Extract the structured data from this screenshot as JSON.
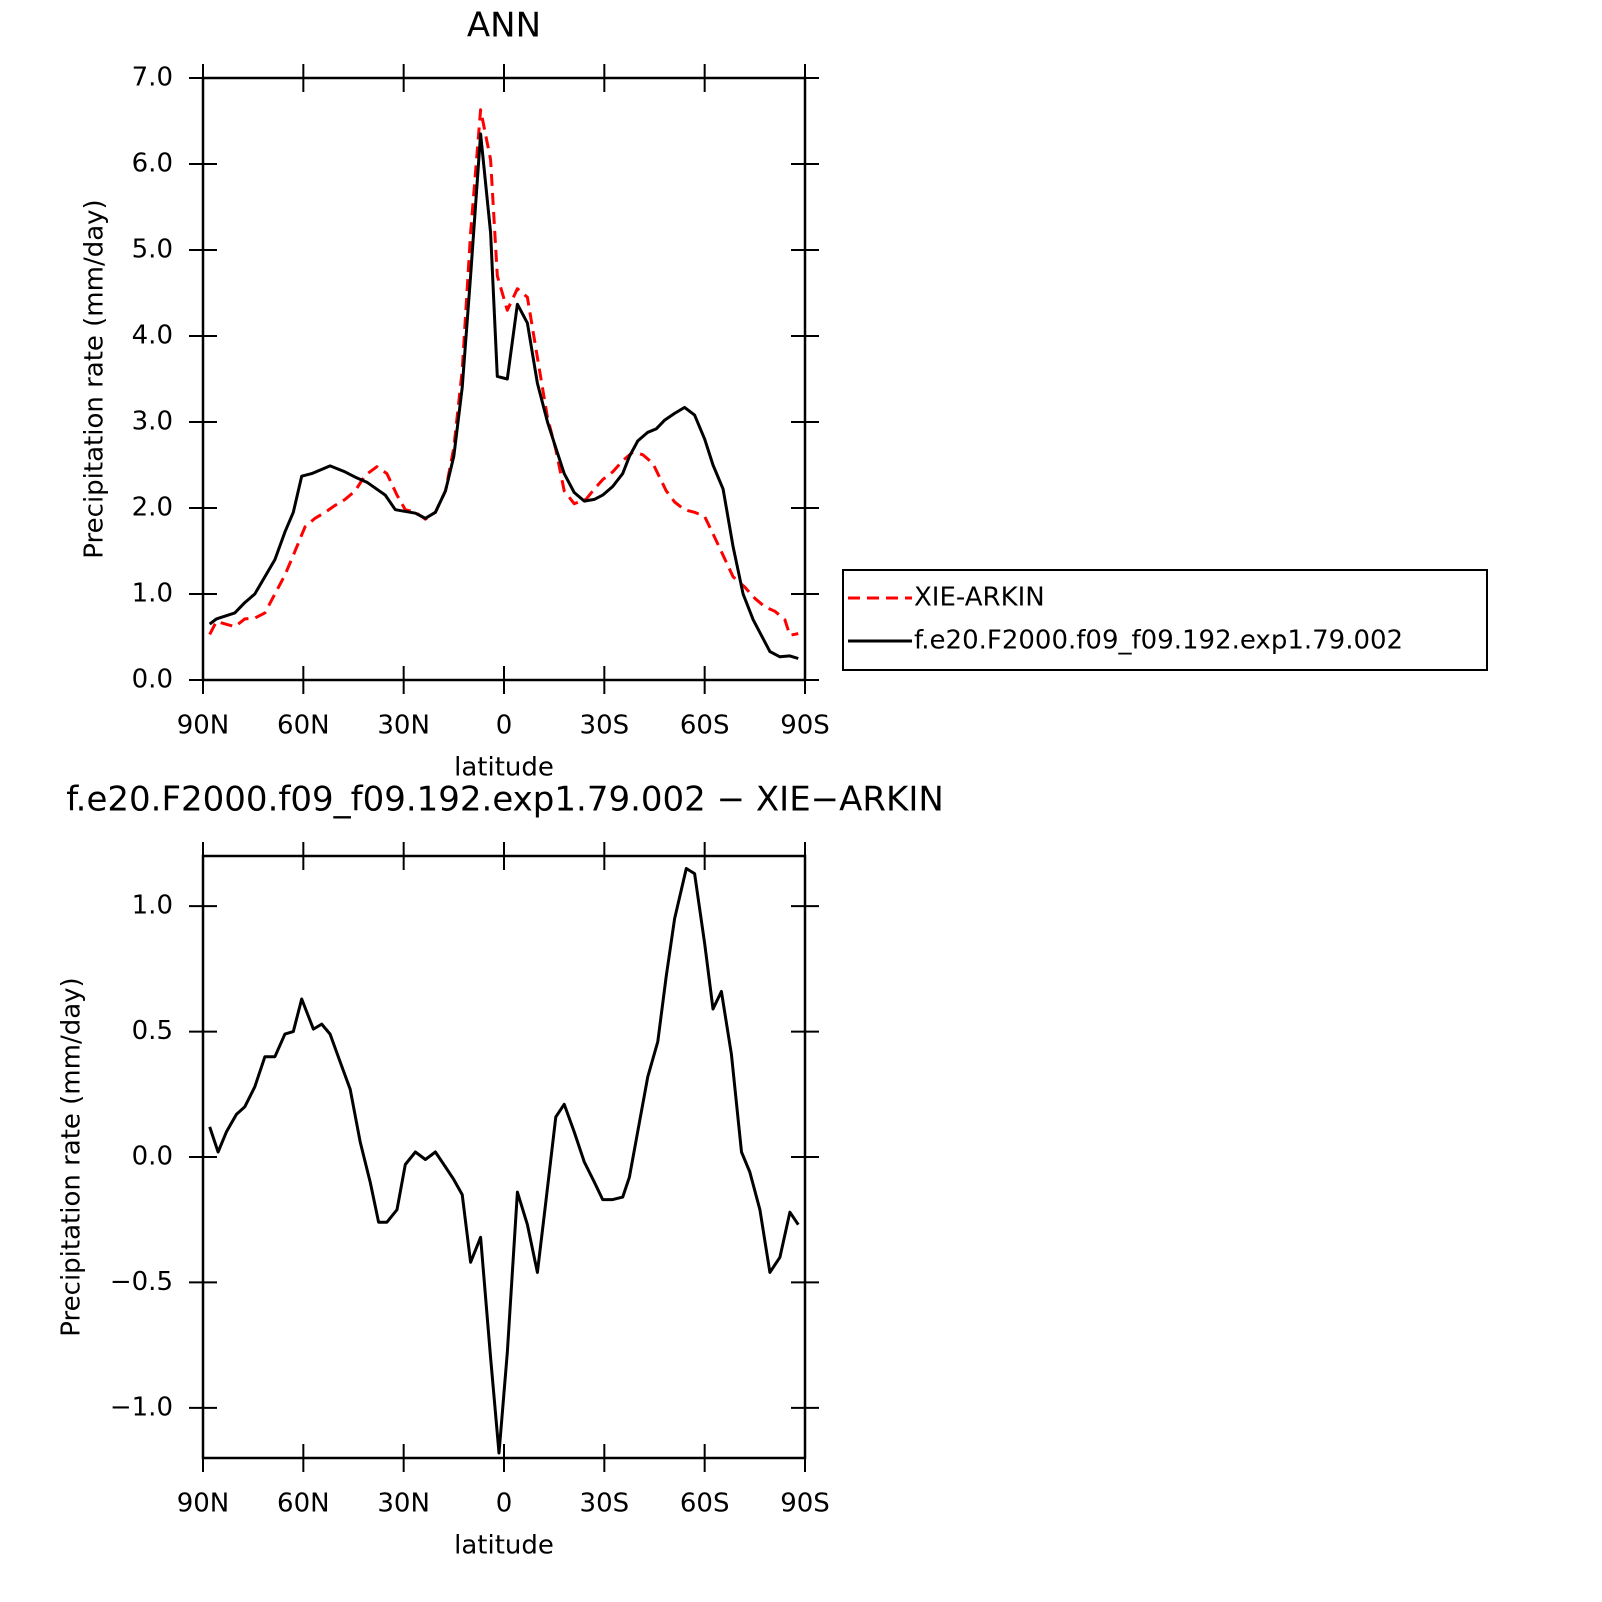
{
  "chart_data": [
    {
      "type": "line",
      "title": "ANN",
      "xlabel": "latitude",
      "ylabel": "Precipitation rate (mm/day)",
      "xlim": [
        90,
        -90
      ],
      "xticks": [
        {
          "value": 90,
          "label": "90N"
        },
        {
          "value": 60,
          "label": "60N"
        },
        {
          "value": 30,
          "label": "30N"
        },
        0,
        {
          "value": -30,
          "label": "30S"
        },
        {
          "value": -60,
          "label": "60S"
        },
        {
          "value": -90,
          "label": "90S"
        }
      ],
      "ylim": [
        0,
        7
      ],
      "yticks": [
        {
          "value": 0,
          "label": "0.0"
        },
        {
          "value": 1,
          "label": "1.0"
        },
        {
          "value": 2,
          "label": "2.0"
        },
        {
          "value": 3,
          "label": "3.0"
        },
        {
          "value": 4,
          "label": "4.0"
        },
        {
          "value": 5,
          "label": "5.0"
        },
        {
          "value": 6,
          "label": "6.0"
        },
        {
          "value": 7,
          "label": "7.0"
        }
      ],
      "legend": "right",
      "series": [
        {
          "name": "XIE-ARKIN",
          "color": "#ff0000",
          "dashed": true,
          "x": [
            88,
            86,
            80.5,
            77.5,
            74.5,
            71.5,
            68.5,
            65.5,
            63,
            59.5,
            56.5,
            53.5,
            50.5,
            47.5,
            44.5,
            41.5,
            38,
            35,
            32,
            29.5,
            26.5,
            23.5,
            20.5,
            17.5,
            15,
            12.5,
            10,
            7,
            4,
            2,
            -1,
            -4,
            -7,
            -10,
            -13,
            -15.5,
            -18,
            -21,
            -24.5,
            -27,
            -29.5,
            -32.5,
            -35.5,
            -38.5,
            -41.5,
            -44.5,
            -48.5,
            -51,
            -54,
            -57,
            -60,
            -62.5,
            -65.5,
            -68.5,
            -72,
            -75,
            -78,
            -81,
            -84,
            -85.5,
            -88
          ],
          "values": [
            0.53,
            0.68,
            0.62,
            0.71,
            0.72,
            0.78,
            1.0,
            1.22,
            1.45,
            1.78,
            1.88,
            1.95,
            2.03,
            2.1,
            2.2,
            2.38,
            2.48,
            2.4,
            2.15,
            1.98,
            1.95,
            1.87,
            1.95,
            2.2,
            2.7,
            3.6,
            5.2,
            6.63,
            6.05,
            4.7,
            4.3,
            4.55,
            4.45,
            3.75,
            3.05,
            2.68,
            2.2,
            2.05,
            2.1,
            2.22,
            2.33,
            2.42,
            2.55,
            2.65,
            2.62,
            2.52,
            2.2,
            2.07,
            1.98,
            1.95,
            1.9,
            1.7,
            1.45,
            1.2,
            1.08,
            0.95,
            0.85,
            0.8,
            0.7,
            0.52,
            0.54
          ]
        },
        {
          "name": "f.e20.F2000.f09_f09.192.exp1.79.002",
          "color": "#000000",
          "dashed": false,
          "x": [
            88,
            86,
            80.5,
            77.5,
            74.5,
            71.5,
            68.5,
            65.5,
            63,
            60.5,
            57.5,
            52,
            47.5,
            44,
            41,
            35.5,
            32.5,
            26.5,
            23.5,
            20.5,
            17.5,
            15,
            12.5,
            10,
            7,
            4,
            2,
            -1,
            -4,
            -7,
            -10,
            -13,
            -15.5,
            -18,
            -21,
            -24,
            -27,
            -29.5,
            -32.5,
            -35.5,
            -37.5,
            -40,
            -43,
            -45.5,
            -48,
            -51,
            -54,
            -57,
            -60,
            -62.5,
            -65.5,
            -68.5,
            -71.5,
            -74.5,
            -79.5,
            -82.5,
            -85.5,
            -88
          ],
          "values": [
            0.65,
            0.71,
            0.78,
            0.9,
            1.0,
            1.2,
            1.4,
            1.72,
            1.95,
            2.37,
            2.4,
            2.49,
            2.42,
            2.35,
            2.3,
            2.15,
            1.98,
            1.94,
            1.88,
            1.95,
            2.2,
            2.6,
            3.4,
            4.7,
            6.35,
            5.2,
            3.53,
            3.5,
            4.37,
            4.15,
            3.45,
            3.0,
            2.7,
            2.4,
            2.18,
            2.08,
            2.1,
            2.15,
            2.25,
            2.4,
            2.6,
            2.78,
            2.88,
            2.92,
            3.02,
            3.1,
            3.17,
            3.08,
            2.8,
            2.5,
            2.22,
            1.55,
            1.0,
            0.7,
            0.33,
            0.27,
            0.28,
            0.25
          ]
        }
      ]
    },
    {
      "type": "line",
      "title": "f.e20.F2000.f09_f09.192.exp1.79.002 − XIE−ARKIN",
      "xlabel": "latitude",
      "ylabel": "Precipitation rate (mm/day)",
      "xlim": [
        90,
        -90
      ],
      "xticks": [
        {
          "value": 90,
          "label": "90N"
        },
        {
          "value": 60,
          "label": "60N"
        },
        {
          "value": 30,
          "label": "30N"
        },
        0,
        {
          "value": -30,
          "label": "30S"
        },
        {
          "value": -60,
          "label": "60S"
        },
        {
          "value": -90,
          "label": "90S"
        }
      ],
      "ylim": [
        -1.2,
        1.2
      ],
      "yticks": [
        {
          "value": -1,
          "label": "−1.0"
        },
        {
          "value": -0.5,
          "label": "−0.5"
        },
        {
          "value": 0,
          "label": "0.0"
        },
        0.5,
        {
          "value": 1,
          "label": "1.0"
        }
      ],
      "series": [
        {
          "color": "#000000",
          "dashed": false,
          "x": [
            88,
            85.5,
            83,
            80,
            77.5,
            74.5,
            71.5,
            68.5,
            65.5,
            63,
            60.5,
            57,
            54.5,
            52,
            49,
            46,
            43,
            40,
            37.5,
            35,
            32,
            29.5,
            26.5,
            23.5,
            20.5,
            17.5,
            15,
            12.5,
            10,
            7,
            4,
            1.5,
            -1,
            -4,
            -7,
            -10,
            -12.5,
            -15.5,
            -18,
            -21,
            -24,
            -27,
            -29.5,
            -32.5,
            -35.5,
            -37.5,
            -40.5,
            -43,
            -46,
            -48.5,
            -51,
            -54.5,
            -57,
            -60,
            -62.5,
            -65,
            -68,
            -71,
            -73.5,
            -76.5,
            -79.5,
            -82.5,
            -85.5,
            -88
          ],
          "values": [
            0.12,
            0.02,
            0.1,
            0.17,
            0.2,
            0.28,
            0.4,
            0.4,
            0.49,
            0.5,
            0.63,
            0.51,
            0.53,
            0.49,
            0.38,
            0.27,
            0.06,
            -0.1,
            -0.26,
            -0.26,
            -0.21,
            -0.03,
            0.02,
            -0.01,
            0.02,
            -0.04,
            -0.09,
            -0.15,
            -0.42,
            -0.32,
            -0.8,
            -1.18,
            -0.78,
            -0.14,
            -0.27,
            -0.46,
            -0.18,
            0.16,
            0.21,
            0.1,
            -0.02,
            -0.1,
            -0.17,
            -0.17,
            -0.16,
            -0.08,
            0.14,
            0.32,
            0.46,
            0.72,
            0.95,
            1.15,
            1.13,
            0.85,
            0.59,
            0.66,
            0.41,
            0.02,
            -0.06,
            -0.21,
            -0.46,
            -0.4,
            -0.22,
            -0.27
          ]
        }
      ]
    }
  ]
}
